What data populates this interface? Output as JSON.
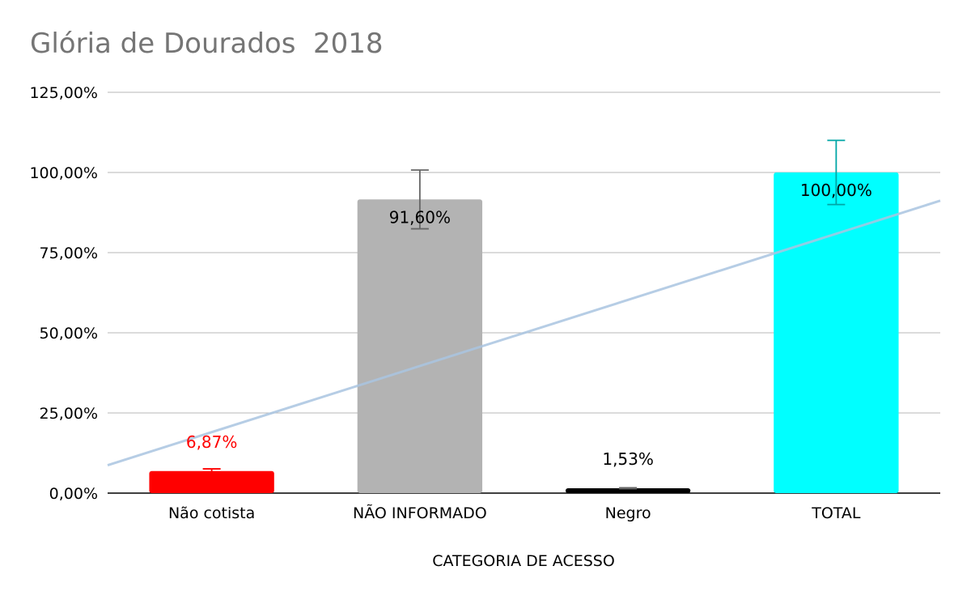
{
  "chart_data": {
    "type": "bar",
    "title": "Glória de Dourados  2018",
    "xlabel": "CATEGORIA DE ACESSO",
    "ylabel": "",
    "ylim": [
      0,
      125
    ],
    "yticks": [
      0,
      25,
      50,
      75,
      100,
      125
    ],
    "ytick_labels": [
      "0,00%",
      "25,00%",
      "50,00%",
      "75,00%",
      "100,00%",
      "125,00%"
    ],
    "categories": [
      "Não cotista",
      "NÃO INFORMADO",
      "Negro",
      "TOTAL"
    ],
    "values": [
      6.87,
      91.6,
      1.53,
      100
    ],
    "data_labels": [
      "6,87%",
      "91,60%",
      "1,53%",
      "100,00%"
    ],
    "colors": [
      "#ff0000",
      "#b3b3b3",
      "#000000",
      "#00ffff"
    ],
    "data_label_colors": [
      "#ff0000",
      "#000000",
      "#000000",
      "#000000"
    ],
    "data_label_position": [
      "above",
      "inside-top",
      "above",
      "inside-top"
    ],
    "error_bars": [
      {
        "low": 6.18,
        "high": 7.56,
        "color": "#ff0000"
      },
      {
        "low": 82.44,
        "high": 100.76,
        "color": "#666666"
      },
      {
        "low": 1.38,
        "high": 1.68,
        "color": "#666666"
      },
      {
        "low": 90,
        "high": 110,
        "color": "#00a6a6"
      }
    ],
    "trendline": {
      "type": "linear",
      "color": "#a9c4e0",
      "start": 8.7,
      "end": 91.2
    },
    "grid": true,
    "legend": "none"
  }
}
